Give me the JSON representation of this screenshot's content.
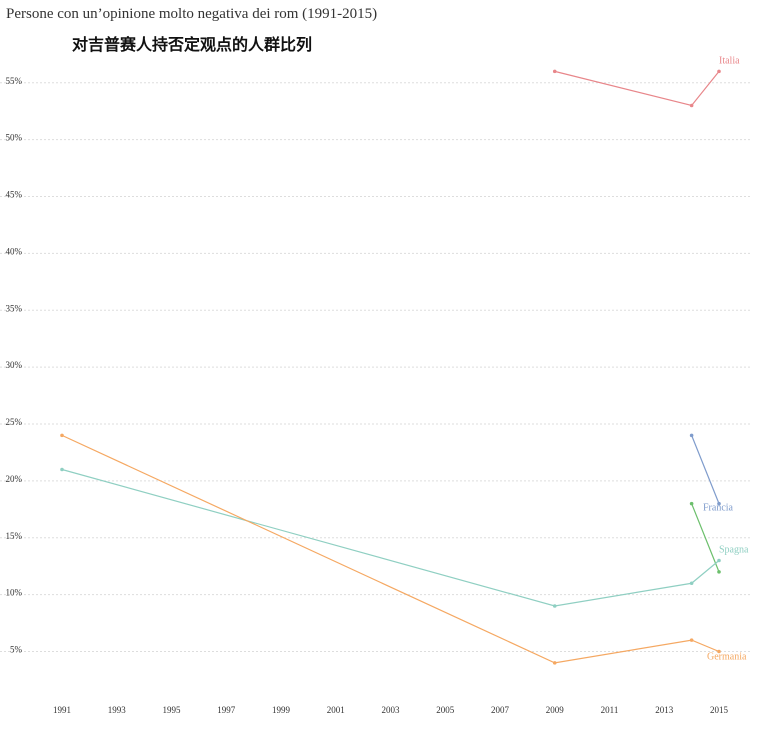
{
  "chart_data": {
    "type": "line",
    "title": "Persone con un’opinione molto negativa dei rom (1991-2015)",
    "subtitle": "对吉普赛人持否定观点的人群比列",
    "xlim": [
      1991,
      2015
    ],
    "xticks": [
      1991,
      1993,
      1995,
      1997,
      1999,
      2001,
      2003,
      2005,
      2007,
      2009,
      2011,
      2013,
      2015
    ],
    "ylim": [
      1,
      57
    ],
    "yticks": [
      {
        "value": 5,
        "label": "5%"
      },
      {
        "value": 10,
        "label": "10%"
      },
      {
        "value": 15,
        "label": "15%"
      },
      {
        "value": 20,
        "label": "20%"
      },
      {
        "value": 25,
        "label": "25%"
      },
      {
        "value": 30,
        "label": "30%"
      },
      {
        "value": 35,
        "label": "35%"
      },
      {
        "value": 40,
        "label": "40%"
      },
      {
        "value": 45,
        "label": "45%"
      },
      {
        "value": 50,
        "label": "50%"
      },
      {
        "value": 55,
        "label": "55%"
      }
    ],
    "grid": true,
    "series": [
      {
        "name": "Italia",
        "color": "#e8868a",
        "x": [
          2009,
          2014,
          2015
        ],
        "values": [
          56,
          53,
          56
        ]
      },
      {
        "name": "Francia",
        "color": "#7f9ccc",
        "x": [
          2014,
          2015
        ],
        "values": [
          24,
          18
        ]
      },
      {
        "color": "#6cbf6c",
        "x": [
          2014,
          2015
        ],
        "values": [
          18,
          12
        ]
      },
      {
        "name": "Spagna",
        "color": "#8fcfc2",
        "x": [
          1991,
          2009,
          2014,
          2015
        ],
        "values": [
          21,
          9,
          11,
          13
        ]
      },
      {
        "name": "Germania",
        "color": "#f5a862",
        "x": [
          1991,
          2009,
          2014,
          2015
        ],
        "values": [
          24,
          4,
          6,
          5
        ]
      }
    ]
  }
}
